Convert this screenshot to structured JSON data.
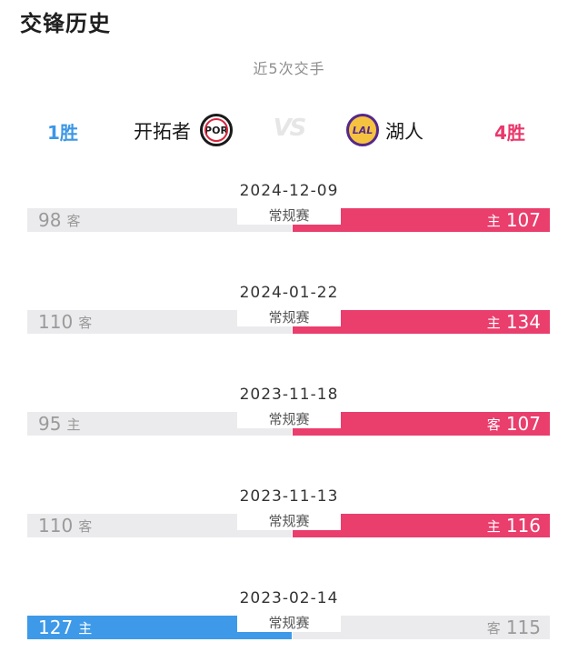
{
  "header": {
    "title": "交锋历史",
    "subtitle": "近5次交手"
  },
  "teams": {
    "left": {
      "wins": "1胜",
      "name": "开拓者",
      "logo_text": "POR",
      "logo_icon": "blazers-logo-icon"
    },
    "right": {
      "wins": "4胜",
      "name": "湖人",
      "logo_text": "LAL",
      "logo_icon": "lakers-logo-icon"
    },
    "vs": "VS"
  },
  "colors": {
    "win_bar": "#ea3e6d",
    "left_win_bar": "#3e9ae8",
    "lose_bar": "#ebebed",
    "left_wins_text": "#3d97e6",
    "right_wins_text": "#e9376b"
  },
  "games": [
    {
      "date": "2024-12-09",
      "type": "常规赛",
      "left_score": "98",
      "left_tag": "客",
      "right_score": "107",
      "right_tag": "主",
      "winner": "right"
    },
    {
      "date": "2024-01-22",
      "type": "常规赛",
      "left_score": "110",
      "left_tag": "客",
      "right_score": "134",
      "right_tag": "主",
      "winner": "right"
    },
    {
      "date": "2023-11-18",
      "type": "常规赛",
      "left_score": "95",
      "left_tag": "主",
      "right_score": "107",
      "right_tag": "客",
      "winner": "right"
    },
    {
      "date": "2023-11-13",
      "type": "常规赛",
      "left_score": "110",
      "left_tag": "客",
      "right_score": "116",
      "right_tag": "主",
      "winner": "right"
    },
    {
      "date": "2023-02-14",
      "type": "常规赛",
      "left_score": "127",
      "left_tag": "主",
      "right_score": "115",
      "right_tag": "客",
      "winner": "left"
    }
  ]
}
